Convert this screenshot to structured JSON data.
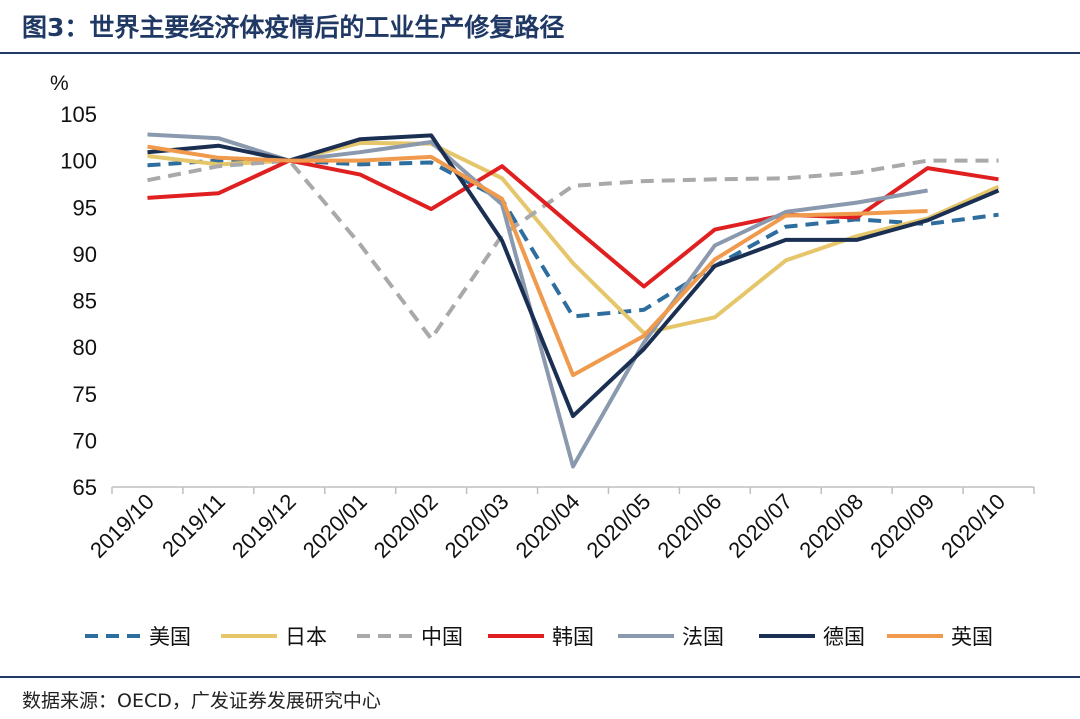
{
  "header": {
    "title": "图3：世界主要经济体疫情后的工业生产修复路径"
  },
  "footer": {
    "source": "数据来源：OECD，广发证券发展研究中心"
  },
  "chart_data": {
    "type": "line",
    "title": "世界主要经济体疫情后的工业生产修复路径",
    "ylabel": "%",
    "ylim": [
      65,
      105
    ],
    "yticks": [
      65,
      70,
      75,
      80,
      85,
      90,
      95,
      100,
      105
    ],
    "categories": [
      "2019/10",
      "2019/11",
      "2019/12",
      "2020/01",
      "2020/02",
      "2020/03",
      "2020/04",
      "2020/05",
      "2020/06",
      "2020/07",
      "2020/08",
      "2020/09",
      "2020/10"
    ],
    "legend_position": "bottom",
    "series": [
      {
        "name": "美国",
        "color": "#2e6e9e",
        "dash": "dashed",
        "values": [
          99.5,
          100.0,
          100.0,
          99.6,
          99.8,
          95.8,
          83.3,
          84.0,
          88.7,
          92.9,
          93.7,
          93.2,
          94.2
        ]
      },
      {
        "name": "日本",
        "color": "#e6c66a",
        "dash": "solid",
        "values": [
          100.5,
          99.6,
          100.0,
          101.9,
          101.8,
          98.1,
          89.0,
          81.5,
          83.2,
          89.3,
          91.9,
          93.8,
          97.2
        ]
      },
      {
        "name": "中国",
        "color": "#a9a9a9",
        "dash": "dashed",
        "values": [
          97.9,
          99.4,
          100.0,
          91.0,
          80.9,
          92.0,
          97.3,
          97.8,
          98.0,
          98.1,
          98.7,
          100.0,
          100.0
        ]
      },
      {
        "name": "韩国",
        "color": "#e02020",
        "dash": "solid",
        "values": [
          96.0,
          96.5,
          100.0,
          98.5,
          94.8,
          99.4,
          92.9,
          86.5,
          92.6,
          94.2,
          93.9,
          99.2,
          98.0
        ]
      },
      {
        "name": "法国",
        "color": "#8a99ae",
        "dash": "solid",
        "values": [
          102.8,
          102.4,
          100.0,
          100.9,
          102.0,
          95.3,
          67.2,
          80.5,
          90.9,
          94.5,
          95.5,
          96.8,
          null
        ]
      },
      {
        "name": "德国",
        "color": "#1a2f52",
        "dash": "solid",
        "values": [
          100.9,
          101.6,
          100.0,
          102.3,
          102.7,
          91.4,
          72.6,
          79.8,
          88.7,
          91.5,
          91.5,
          93.6,
          96.8
        ]
      },
      {
        "name": "英国",
        "color": "#ef9a4c",
        "dash": "solid",
        "values": [
          101.5,
          100.3,
          100.0,
          100.0,
          100.4,
          95.9,
          77.0,
          81.2,
          89.4,
          94.1,
          94.3,
          94.6,
          null
        ]
      }
    ]
  }
}
